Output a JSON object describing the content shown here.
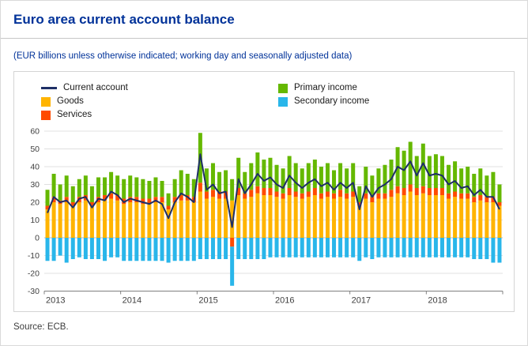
{
  "page": {
    "title": "Euro area current account balance",
    "subtitle": "(EUR billions unless otherwise indicated; working day and seasonally adjusted data)",
    "source": "Source: ECB."
  },
  "colors": {
    "title_blue": "#003299",
    "line_navy": "#1e2f66",
    "goods_yellow": "#ffb400",
    "services_orange": "#ff4b00",
    "primary_green": "#65b800",
    "secondary_cyan": "#29b6ea",
    "grid": "#e0e0e0",
    "axis": "#808080"
  },
  "legend": [
    {
      "label": "Current account",
      "swatch": "line",
      "color": "#1e2f66"
    },
    {
      "label": "Goods",
      "swatch": "box",
      "color": "#ffb400"
    },
    {
      "label": "Services",
      "swatch": "box",
      "color": "#ff4b00"
    },
    {
      "label": "Primary income",
      "swatch": "box",
      "color": "#65b800"
    },
    {
      "label": "Secondary income",
      "swatch": "box",
      "color": "#29b6ea"
    }
  ],
  "chart_data": {
    "type": "stacked-bar+line",
    "title": "Euro area current account balance",
    "ylabel": "",
    "units": "EUR billions",
    "ylim": [
      -30,
      60
    ],
    "ytick_step": 10,
    "grid": true,
    "legend_position": "top",
    "x_years": [
      "2013",
      "2014",
      "2015",
      "2016",
      "2017",
      "2018"
    ],
    "year_ticks": [
      0,
      12,
      24,
      36,
      48,
      60,
      72
    ],
    "months": [
      "2013-01",
      "2013-02",
      "2013-03",
      "2013-04",
      "2013-05",
      "2013-06",
      "2013-07",
      "2013-08",
      "2013-09",
      "2013-10",
      "2013-11",
      "2013-12",
      "2014-01",
      "2014-02",
      "2014-03",
      "2014-04",
      "2014-05",
      "2014-06",
      "2014-07",
      "2014-08",
      "2014-09",
      "2014-10",
      "2014-11",
      "2014-12",
      "2015-01",
      "2015-02",
      "2015-03",
      "2015-04",
      "2015-05",
      "2015-06",
      "2015-07",
      "2015-08",
      "2015-09",
      "2015-10",
      "2015-11",
      "2015-12",
      "2016-01",
      "2016-02",
      "2016-03",
      "2016-04",
      "2016-05",
      "2016-06",
      "2016-07",
      "2016-08",
      "2016-09",
      "2016-10",
      "2016-11",
      "2016-12",
      "2017-01",
      "2017-02",
      "2017-03",
      "2017-04",
      "2017-05",
      "2017-06",
      "2017-07",
      "2017-08",
      "2017-09",
      "2017-10",
      "2017-11",
      "2017-12",
      "2018-01",
      "2018-02",
      "2018-03",
      "2018-04",
      "2018-05",
      "2018-06",
      "2018-07",
      "2018-08",
      "2018-09",
      "2018-10",
      "2018-11",
      "2018-12"
    ],
    "series": [
      {
        "name": "Goods",
        "type": "bar",
        "color": "#ffb400",
        "values": [
          16,
          20,
          19,
          20,
          18,
          20,
          21,
          18,
          20,
          21,
          22,
          21,
          19,
          20,
          20,
          19,
          19,
          20,
          20,
          16,
          20,
          21,
          21,
          20,
          26,
          22,
          23,
          22,
          22,
          21,
          24,
          22,
          23,
          25,
          24,
          24,
          23,
          22,
          24,
          23,
          22,
          23,
          24,
          22,
          23,
          22,
          23,
          22,
          23,
          18,
          22,
          20,
          22,
          22,
          23,
          25,
          24,
          26,
          24,
          25,
          24,
          24,
          24,
          22,
          23,
          22,
          22,
          20,
          21,
          20,
          20,
          18
        ]
      },
      {
        "name": "Services",
        "type": "bar",
        "color": "#ff4b00",
        "values": [
          2,
          3,
          2,
          3,
          2,
          3,
          3,
          2,
          3,
          3,
          3,
          3,
          3,
          3,
          3,
          3,
          3,
          3,
          3,
          2,
          3,
          3,
          3,
          3,
          5,
          4,
          4,
          4,
          4,
          -5,
          4,
          3,
          4,
          4,
          4,
          4,
          3,
          3,
          4,
          3,
          3,
          3,
          4,
          3,
          3,
          3,
          4,
          3,
          3,
          2,
          3,
          3,
          3,
          3,
          4,
          4,
          4,
          4,
          4,
          4,
          4,
          4,
          4,
          3,
          3,
          3,
          3,
          3,
          3,
          3,
          3,
          2
        ]
      },
      {
        "name": "Primary income",
        "type": "bar",
        "color": "#65b800",
        "values": [
          9,
          13,
          9,
          12,
          9,
          10,
          11,
          9,
          11,
          10,
          12,
          11,
          11,
          12,
          11,
          11,
          10,
          11,
          9,
          7,
          10,
          14,
          12,
          10,
          28,
          13,
          15,
          11,
          12,
          12,
          17,
          12,
          15,
          19,
          16,
          17,
          15,
          14,
          18,
          16,
          14,
          16,
          16,
          15,
          16,
          13,
          15,
          14,
          16,
          9,
          15,
          12,
          14,
          16,
          17,
          22,
          21,
          24,
          18,
          24,
          18,
          19,
          18,
          16,
          17,
          14,
          15,
          13,
          15,
          12,
          14,
          10
        ]
      },
      {
        "name": "Secondary income",
        "type": "bar",
        "color": "#29b6ea",
        "values": [
          -13,
          -13,
          -10,
          -14,
          -12,
          -11,
          -12,
          -12,
          -12,
          -13,
          -11,
          -11,
          -13,
          -13,
          -13,
          -13,
          -13,
          -13,
          -13,
          -14,
          -13,
          -13,
          -13,
          -13,
          -12,
          -12,
          -12,
          -12,
          -12,
          -22,
          -12,
          -12,
          -12,
          -12,
          -12,
          -11,
          -11,
          -11,
          -11,
          -11,
          -11,
          -11,
          -11,
          -11,
          -11,
          -11,
          -11,
          -11,
          -11,
          -13,
          -11,
          -12,
          -11,
          -11,
          -11,
          -11,
          -11,
          -11,
          -11,
          -11,
          -11,
          -11,
          -11,
          -11,
          -11,
          -11,
          -11,
          -12,
          -12,
          -12,
          -14,
          -14
        ]
      },
      {
        "name": "Current account",
        "type": "line",
        "color": "#1e2f66",
        "values": [
          14,
          23,
          20,
          21,
          17,
          22,
          23,
          17,
          22,
          21,
          26,
          24,
          20,
          22,
          21,
          20,
          19,
          21,
          19,
          11,
          20,
          25,
          23,
          20,
          47,
          27,
          30,
          25,
          26,
          6,
          33,
          25,
          30,
          36,
          32,
          34,
          30,
          28,
          35,
          31,
          28,
          31,
          33,
          29,
          31,
          27,
          31,
          28,
          31,
          16,
          29,
          23,
          28,
          30,
          33,
          40,
          38,
          43,
          35,
          42,
          35,
          36,
          35,
          30,
          32,
          28,
          29,
          24,
          27,
          23,
          23,
          16
        ]
      }
    ]
  }
}
